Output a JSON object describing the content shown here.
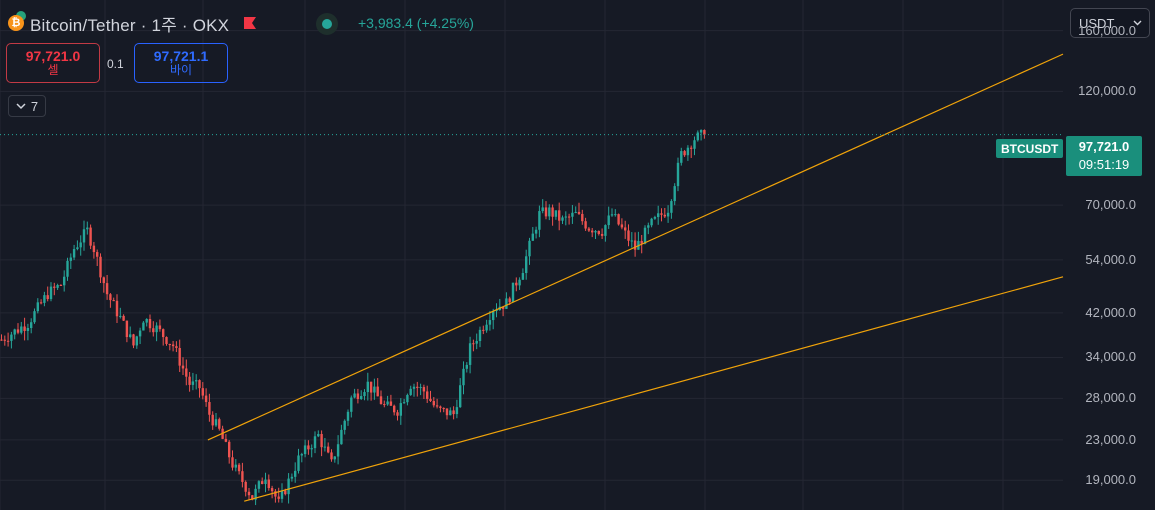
{
  "header": {
    "symbol_title": "Bitcoin/Tether · 1주 · OKX",
    "change_text": "+3,983.4 (+4.25%)"
  },
  "trade": {
    "sell_price": "97,721.0",
    "sell_label": "셀",
    "spread": "0.1",
    "buy_price": "97,721.1",
    "buy_label": "바이"
  },
  "indicator_toggle": {
    "count": "7"
  },
  "symbol_select": {
    "value": "USDT"
  },
  "price_axis": {
    "labels": [
      {
        "text": "160,000.0",
        "value": 160000
      },
      {
        "text": "120,000.0",
        "value": 120000
      },
      {
        "text": "70,000.0",
        "value": 70000
      },
      {
        "text": "54,000.0",
        "value": 54000
      },
      {
        "text": "42,000.0",
        "value": 42000
      },
      {
        "text": "34,000.0",
        "value": 34000
      },
      {
        "text": "28,000.0",
        "value": 28000
      },
      {
        "text": "23,000.0",
        "value": 23000
      },
      {
        "text": "19,000.0",
        "value": 19000
      }
    ]
  },
  "last_price": {
    "symbol": "BTCUSDT",
    "price": "97,721.0",
    "countdown": "09:51:19"
  },
  "colors": {
    "up": "#26a69a",
    "down": "#ef5350",
    "channel": "#f0a30a",
    "background": "#161a25",
    "grid": "#242733"
  },
  "chart_data": {
    "type": "candlestick",
    "interval": "1 week",
    "y_scale": "log",
    "ylim": [
      16500,
      185000
    ],
    "candles_weeks": 173,
    "path": [
      [
        0,
        37000
      ],
      [
        8,
        40000
      ],
      [
        14,
        46000
      ],
      [
        18,
        48000
      ],
      [
        22,
        57000
      ],
      [
        26,
        62000
      ],
      [
        28,
        57000
      ],
      [
        32,
        46000
      ],
      [
        36,
        41000
      ],
      [
        40,
        36000
      ],
      [
        43,
        41000
      ],
      [
        47,
        39000
      ],
      [
        52,
        36000
      ],
      [
        57,
        30000
      ],
      [
        60,
        29500
      ],
      [
        63,
        26000
      ],
      [
        66,
        24000
      ],
      [
        70,
        20500
      ],
      [
        76,
        17500
      ],
      [
        80,
        19500
      ],
      [
        84,
        17000
      ],
      [
        90,
        21000
      ],
      [
        96,
        23500
      ],
      [
        100,
        20500
      ],
      [
        106,
        28000
      ],
      [
        111,
        30000
      ],
      [
        116,
        27000
      ],
      [
        120,
        26500
      ],
      [
        124,
        30000
      ],
      [
        128,
        29000
      ],
      [
        132,
        26500
      ],
      [
        137,
        26000
      ],
      [
        142,
        35500
      ],
      [
        149,
        43000
      ],
      [
        153,
        44000
      ],
      [
        158,
        52000
      ],
      [
        163,
        67000
      ],
      [
        166,
        68000
      ],
      [
        170,
        65000
      ],
      [
        174,
        67000
      ],
      [
        178,
        63000
      ],
      [
        182,
        62000
      ],
      [
        185,
        67000
      ],
      [
        189,
        61000
      ],
      [
        192,
        57000
      ],
      [
        197,
        64000
      ],
      [
        202,
        69000
      ],
      [
        206,
        89000
      ],
      [
        210,
        96000
      ],
      [
        213,
        97721
      ]
    ],
    "channel": {
      "upper": [
        [
          63,
          23000
        ],
        [
          103,
          30500
        ]
      ],
      "lower": [
        [
          74,
          17200
        ],
        [
          82,
          17800
        ]
      ]
    },
    "last_price": 97721.0
  }
}
